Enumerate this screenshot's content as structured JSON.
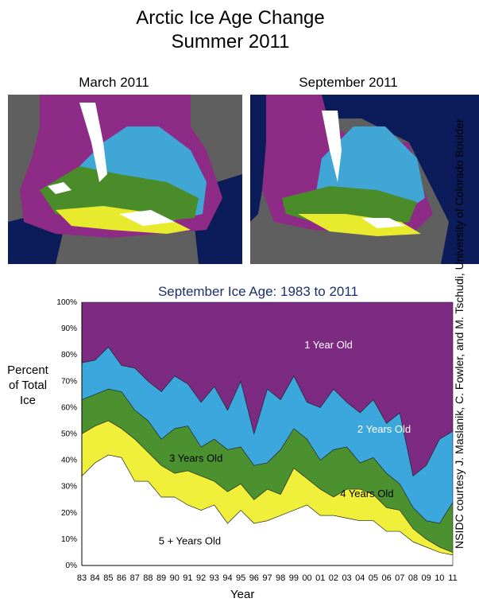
{
  "header": {
    "title_line1": "Arctic Ice Age Change",
    "title_line2": "Summer 2011"
  },
  "maps": {
    "left_label": "March 2011",
    "right_label": "September 2011",
    "colors": {
      "land": "#5f5f5f",
      "ocean": "#0c1c5a",
      "first_year": "#8e2b86",
      "second_year": "#3fa6d6",
      "third_year": "#4b8c2a",
      "fourth_year": "#e8ea2e",
      "five_plus": "#ffffff"
    }
  },
  "credit": "NSIDC courtesy J. Maslanik, C. Fowler, and M. Tschudi, University of Colorado Boulder",
  "chart_data": {
    "type": "area",
    "title": "September Ice Age: 1983 to 2011",
    "ylabel_lines": [
      "Percent",
      "of Total",
      "Ice"
    ],
    "xlabel": "Year",
    "x": [
      "83",
      "84",
      "85",
      "86",
      "87",
      "88",
      "89",
      "90",
      "91",
      "92",
      "93",
      "94",
      "95",
      "96",
      "97",
      "98",
      "99",
      "00",
      "01",
      "02",
      "03",
      "04",
      "05",
      "06",
      "07",
      "08",
      "09",
      "10",
      "11"
    ],
    "ylim": [
      0,
      100
    ],
    "yticks": [
      "0%",
      "10%",
      "20%",
      "30%",
      "40%",
      "50%",
      "60%",
      "70%",
      "80%",
      "90%",
      "100%"
    ],
    "stacking": "cumulative boundaries, bottom to top",
    "series": [
      {
        "name": "5 + Years Old",
        "color": "#ffffff",
        "top": [
          34,
          39,
          42,
          41,
          32,
          32,
          26,
          26,
          23,
          21,
          23,
          16,
          21,
          16,
          17,
          19,
          21,
          23,
          19,
          19,
          18,
          17,
          17,
          13,
          13,
          9,
          7,
          5,
          4
        ]
      },
      {
        "name": "4 Years Old",
        "color": "#f0ef3a",
        "top": [
          50,
          53,
          55,
          52,
          48,
          43,
          38,
          35,
          36,
          34,
          32,
          28,
          31,
          25,
          29,
          27,
          37,
          33,
          29,
          26,
          29,
          29,
          27,
          22,
          21,
          14,
          10,
          7,
          5
        ]
      },
      {
        "name": "3 Years Old",
        "color": "#4c9130",
        "top": [
          63,
          65,
          67,
          66,
          59,
          55,
          48,
          52,
          53,
          45,
          48,
          44,
          45,
          38,
          39,
          44,
          52,
          48,
          40,
          44,
          45,
          39,
          41,
          35,
          31,
          22,
          17,
          16,
          24
        ]
      },
      {
        "name": "2 Years Old",
        "color": "#3ca7dc",
        "top": [
          77,
          78,
          83,
          76,
          75,
          70,
          66,
          72,
          69,
          62,
          68,
          59,
          70,
          50,
          67,
          63,
          72,
          62,
          60,
          67,
          62,
          58,
          63,
          54,
          58,
          34,
          38,
          48,
          51
        ]
      },
      {
        "name": "1 Year Old",
        "color": "#7d2a82",
        "top": [
          100,
          100,
          100,
          100,
          100,
          100,
          100,
          100,
          100,
          100,
          100,
          100,
          100,
          100,
          100,
          100,
          100,
          100,
          100,
          100,
          100,
          100,
          100,
          100,
          100,
          100,
          100,
          100,
          100
        ]
      }
    ]
  }
}
